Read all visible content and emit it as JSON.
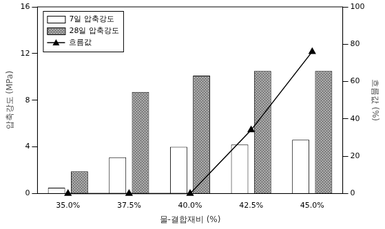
{
  "chart_data": {
    "type": "bar",
    "categories": [
      "35.0%",
      "37.5%",
      "40.0%",
      "42.5%",
      "45.0%"
    ],
    "series": [
      {
        "name": "7일 압축강도",
        "color": "#ffffff",
        "values": [
          0.5,
          3.1,
          4.0,
          4.2,
          4.6
        ]
      },
      {
        "name": "28일 압축강도",
        "color": "#a0a0a0",
        "values": [
          1.9,
          8.7,
          10.1,
          10.5,
          10.5
        ]
      },
      {
        "name": "흐름값",
        "type": "line",
        "color": "#000000",
        "marker": "triangle",
        "axis": "y2",
        "values": [
          0,
          0,
          0,
          34,
          76
        ]
      }
    ],
    "x_label": "물-결합재비 (%)",
    "y_label": "압축강도 (MPa)",
    "y2_label": "흐름값 (%)",
    "ylim": [
      0,
      16
    ],
    "yticks": [
      0,
      4,
      8,
      12,
      16
    ],
    "y2lim": [
      0,
      100
    ],
    "y2ticks": [
      0,
      20,
      40,
      60,
      80,
      100
    ],
    "legend": "upper left",
    "grid": false
  }
}
